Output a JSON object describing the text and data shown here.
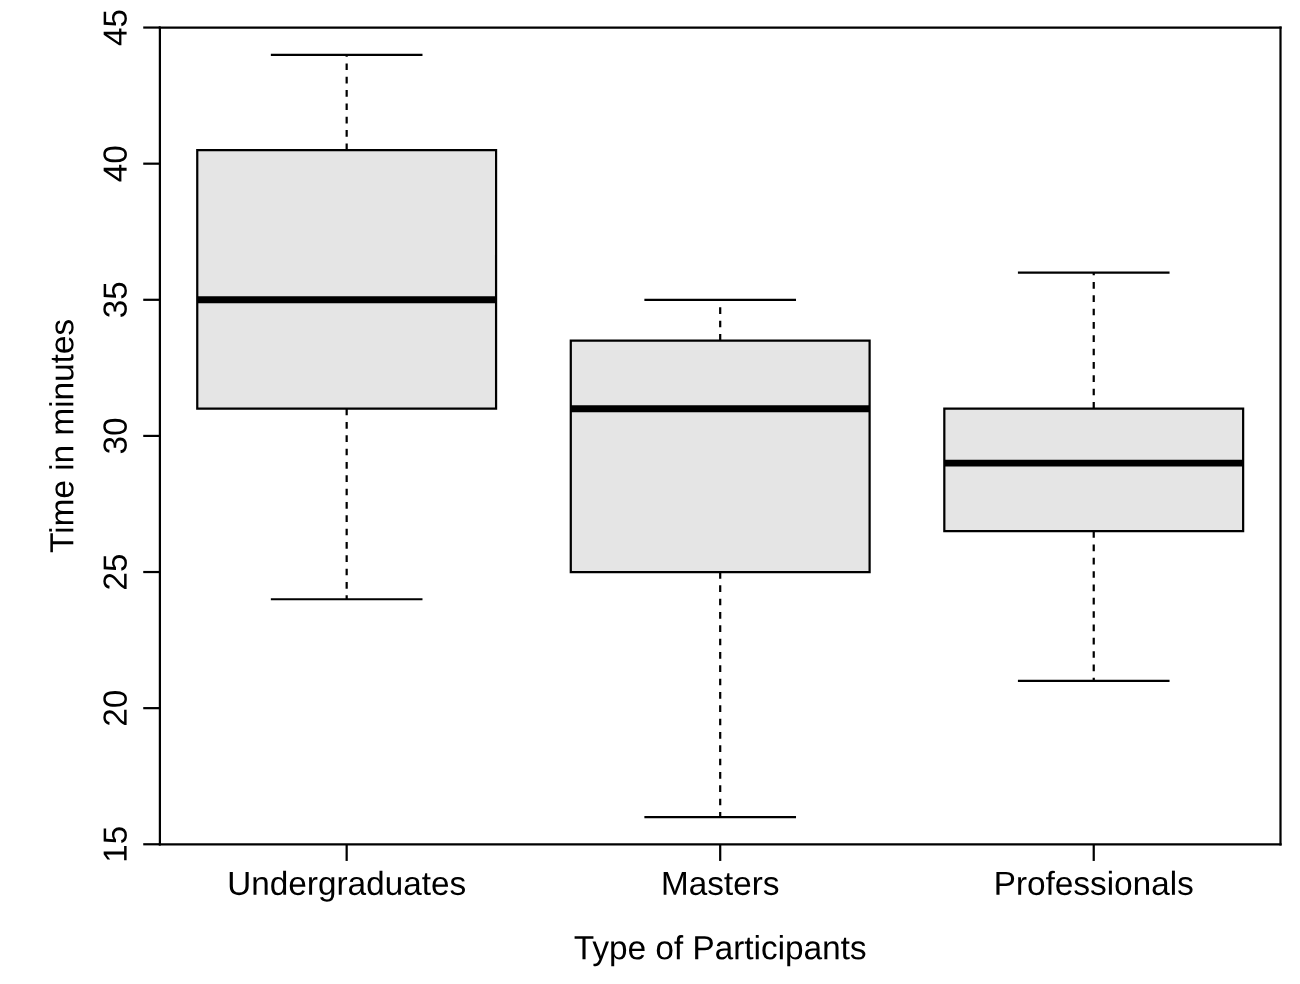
{
  "chart_data": {
    "type": "box",
    "xlabel": "Type of Participants",
    "ylabel": "Time in minutes",
    "categories": [
      "Undergraduates",
      "Masters",
      "Professionals"
    ],
    "boxes": [
      {
        "low": 24,
        "q1": 31,
        "median": 35,
        "q3": 40.5,
        "high": 44
      },
      {
        "low": 16,
        "q1": 25,
        "median": 31,
        "q3": 33.5,
        "high": 35
      },
      {
        "low": 21,
        "q1": 26.5,
        "median": 29,
        "q3": 31,
        "high": 36
      }
    ],
    "color": "#e5e5e5",
    "ylim": [
      15,
      45
    ],
    "yticks": [
      15,
      20,
      25,
      30,
      35,
      40,
      45
    ],
    "grid": false
  }
}
